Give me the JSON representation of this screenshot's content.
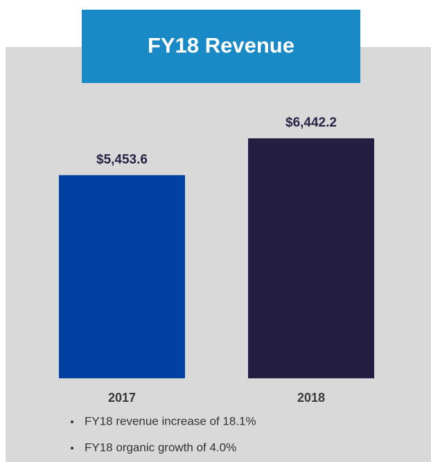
{
  "chart_data": {
    "type": "bar",
    "title": "FY18 Revenue",
    "categories": [
      "2017",
      "2018"
    ],
    "values": [
      5453.6,
      6442.2
    ],
    "value_labels": [
      "$5,453.6",
      "$6,442.2"
    ],
    "colors": [
      "#0041a3",
      "#231e42"
    ],
    "notes": [
      "FY18 revenue increase of 18.1%",
      "FY18 organic growth of 4.0%"
    ]
  }
}
